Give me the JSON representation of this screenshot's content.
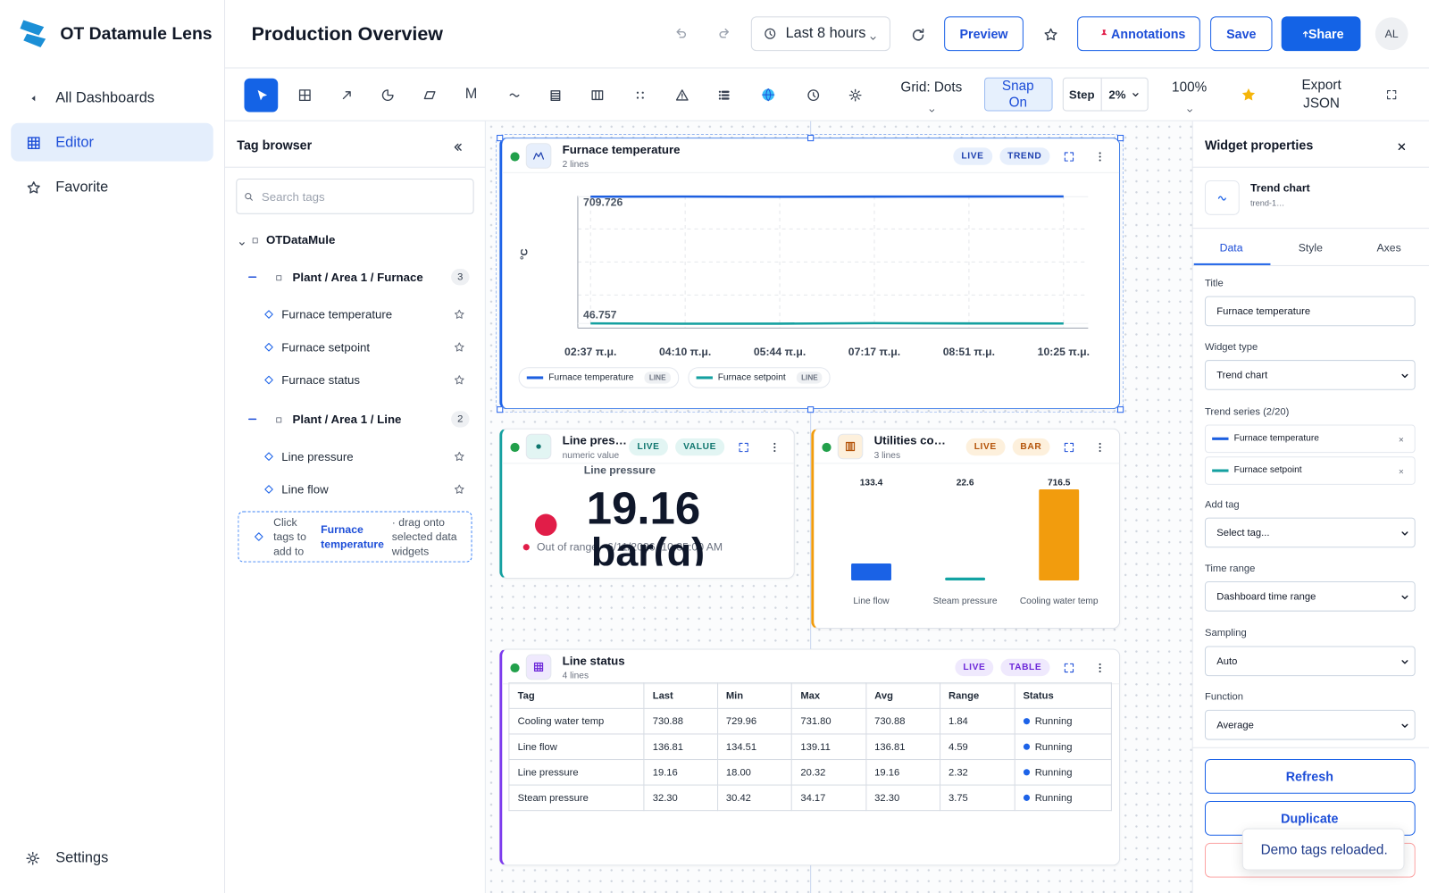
{
  "sidebar": {
    "brand": "OT Datamule Lens",
    "nav": [
      "All Dashboards",
      "Editor",
      "Favorite"
    ],
    "settings": "Settings"
  },
  "header": {
    "title": "Production Overview",
    "time_range": "Last 8 hours",
    "preview": "Preview",
    "annotations": "Annotations",
    "save": "Save",
    "share": "Share",
    "avatar": "AL"
  },
  "toolbar": {
    "markdown_tool": "M",
    "grid": "Grid: Dots",
    "snap": "Snap On",
    "step": "Step",
    "step_value": "2%",
    "zoom": "100%",
    "export": "Export JSON"
  },
  "tag_browser": {
    "title": "Tag browser",
    "search_placeholder": "Search tags",
    "root": "OTDataMule",
    "groups": [
      {
        "name": "Plant / Area 1 / Furnace",
        "count": 3,
        "tags": [
          "Furnace temperature",
          "Furnace setpoint",
          "Furnace status"
        ]
      },
      {
        "name": "Plant / Area 1 / Line",
        "count": 2,
        "tags": [
          "Line pressure",
          "Line flow"
        ]
      }
    ],
    "hint": {
      "before": "Click tags to add to",
      "tag": "Furnace temperature",
      "after": "· drag onto selected data widgets"
    }
  },
  "widgets": {
    "trend": {
      "title": "Furnace temperature",
      "subtitle": "2 lines",
      "badges": [
        "LIVE",
        "TREND"
      ]
    },
    "value": {
      "title": "Line pressure",
      "subtitle": "numeric value",
      "badges": [
        "LIVE",
        "VALUE"
      ],
      "label": "Line pressure",
      "value": "19.16",
      "unit": "bar(g)",
      "status": "Out of range · 6/11/2026, 10:35:00 AM"
    },
    "bar": {
      "title": "Utilities consumption",
      "subtitle": "3 lines",
      "badges": [
        "LIVE",
        "BAR"
      ]
    },
    "table": {
      "title": "Line status",
      "subtitle": "4 lines",
      "badges": [
        "LIVE",
        "TABLE"
      ],
      "columns": [
        "Tag",
        "Last",
        "Min",
        "Max",
        "Avg",
        "Range",
        "Status"
      ],
      "rows": [
        [
          "Cooling water temp",
          "730.88",
          "729.96",
          "731.80",
          "730.88",
          "1.84",
          "Running"
        ],
        [
          "Line flow",
          "136.81",
          "134.51",
          "139.11",
          "136.81",
          "4.59",
          "Running"
        ],
        [
          "Line pressure",
          "19.16",
          "18.00",
          "20.32",
          "19.16",
          "2.32",
          "Running"
        ],
        [
          "Steam pressure",
          "32.30",
          "30.42",
          "34.17",
          "32.30",
          "3.75",
          "Running"
        ]
      ]
    }
  },
  "chart_data": [
    {
      "type": "line",
      "y_label": "°C",
      "categories": [
        "02:37 π.μ.",
        "04:10 π.μ.",
        "05:44 π.μ.",
        "07:17 π.μ.",
        "08:51 π.μ.",
        "10:25 π.μ."
      ],
      "ylim": [
        23,
        714
      ],
      "yticks": [
        46.757,
        709.726
      ],
      "grid": true,
      "legend_badge": "LINE",
      "series": [
        {
          "name": "Furnace temperature",
          "color": "#1d5fe0",
          "values": [
            709.9,
            710.6,
            709.4,
            710.3,
            710.9,
            711.3
          ]
        },
        {
          "name": "Furnace setpoint",
          "color": "#14a0a0",
          "values": [
            47.3,
            45.5,
            46.0,
            48.6,
            47.2,
            46.9
          ]
        }
      ]
    },
    {
      "type": "bar",
      "categories": [
        "Line flow",
        "Steam pressure",
        "Cooling water temp"
      ],
      "values": [
        133.4,
        22.6,
        716.5
      ],
      "colors": [
        "#1a62e6",
        "#12a3a3",
        "#f29c0d"
      ]
    }
  ],
  "properties": {
    "title": "Widget properties",
    "widget_name": "Trend chart",
    "widget_id": "trend-1…",
    "tabs": [
      "Data",
      "Style",
      "Axes"
    ],
    "top_fields": [
      {
        "label": "Title",
        "value": "Furnace temperature"
      },
      {
        "label": "Widget type",
        "value": "Trend chart"
      }
    ],
    "series_label": "Trend series (2/20)",
    "fields": [
      {
        "label": "Add tag",
        "value": "Select tag..."
      },
      {
        "label": "Time range",
        "value": "Dashboard time range"
      },
      {
        "label": "Sampling",
        "value": "Auto"
      },
      {
        "label": "Function",
        "value": "Average"
      }
    ],
    "buttons": [
      "Refresh",
      "Duplicate"
    ]
  },
  "toast": "Demo tags reloaded."
}
